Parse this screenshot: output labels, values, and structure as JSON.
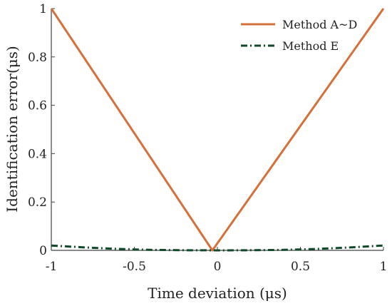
{
  "chart_data": {
    "type": "line",
    "xlabel": "Time deviation (μs)",
    "ylabel": "Identification error(μs)",
    "xlim": [
      -1,
      1
    ],
    "ylim": [
      0,
      1
    ],
    "x_ticks": [
      "-1",
      "-0.5",
      "0",
      "0.5",
      "1"
    ],
    "y_ticks": [
      "0",
      "0.2",
      "0.4",
      "0.6",
      "0.8",
      "1"
    ],
    "grid": false,
    "legend_position": "top-right",
    "series": [
      {
        "name": "Method A~D",
        "color": "#d4713a",
        "style": "solid",
        "x": [
          -1,
          -0.03,
          1
        ],
        "y": [
          1,
          0,
          1
        ]
      },
      {
        "name": "Method E",
        "color": "#0f4a2a",
        "style": "dashdot",
        "x": [
          -1,
          -0.8,
          -0.6,
          -0.4,
          -0.2,
          0,
          0.2,
          0.4,
          0.6,
          0.8,
          1
        ],
        "y": [
          0.02,
          0.012,
          0.006,
          0.002,
          0.0005,
          0,
          0.0005,
          0.002,
          0.006,
          0.012,
          0.02
        ]
      }
    ]
  }
}
